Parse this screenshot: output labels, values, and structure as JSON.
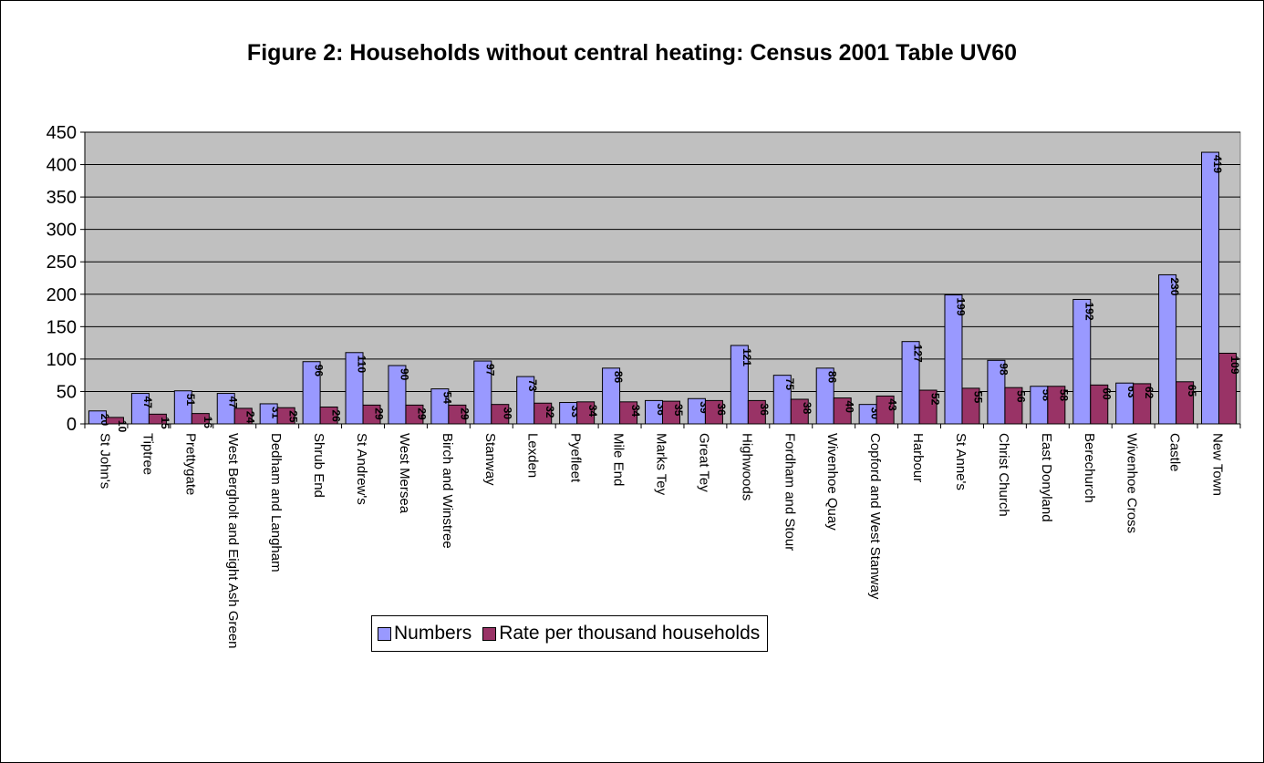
{
  "chart_data": {
    "type": "bar",
    "title": "Figure 2: Households without central heating: Census 2001 Table UV60",
    "xlabel": "",
    "ylabel": "",
    "ylim": [
      0,
      450
    ],
    "yticks": [
      0,
      50,
      100,
      150,
      200,
      250,
      300,
      350,
      400,
      450
    ],
    "grid": true,
    "legend_position": "bottom",
    "categories": [
      "St John's",
      "Tiptree",
      "Prettygate",
      "West Bergholt and Eight Ash Green",
      "Dedham and Langham",
      "Shrub End",
      "St Andrew's",
      "West Mersea",
      "Birch and Winstree",
      "Stanway",
      "Lexden",
      "Pyefleet",
      "Mile End",
      "Marks Tey",
      "Great Tey",
      "Highwoods",
      "Fordham and Stour",
      "Wivenhoe Quay",
      "Copford and West Stanway",
      "Harbour",
      "St Anne's",
      "Christ Church",
      "East Donyland",
      "Berechurch",
      "Wivenhoe Cross",
      "Castle",
      "New Town"
    ],
    "series": [
      {
        "name": "Numbers",
        "color": "#9999ff",
        "values": [
          20,
          47,
          51,
          47,
          31,
          96,
          110,
          90,
          54,
          97,
          73,
          33,
          86,
          36,
          39,
          121,
          75,
          86,
          30,
          127,
          199,
          98,
          58,
          192,
          63,
          230,
          419
        ]
      },
      {
        "name": "Rate per thousand households",
        "color": "#993366",
        "values": [
          10,
          15,
          16,
          24,
          25,
          26,
          29,
          29,
          29,
          30,
          32,
          34,
          34,
          35,
          36,
          36,
          38,
          40,
          43,
          52,
          55,
          56,
          58,
          60,
          62,
          65,
          109
        ]
      }
    ],
    "plot_background": "#c0c0c0"
  }
}
